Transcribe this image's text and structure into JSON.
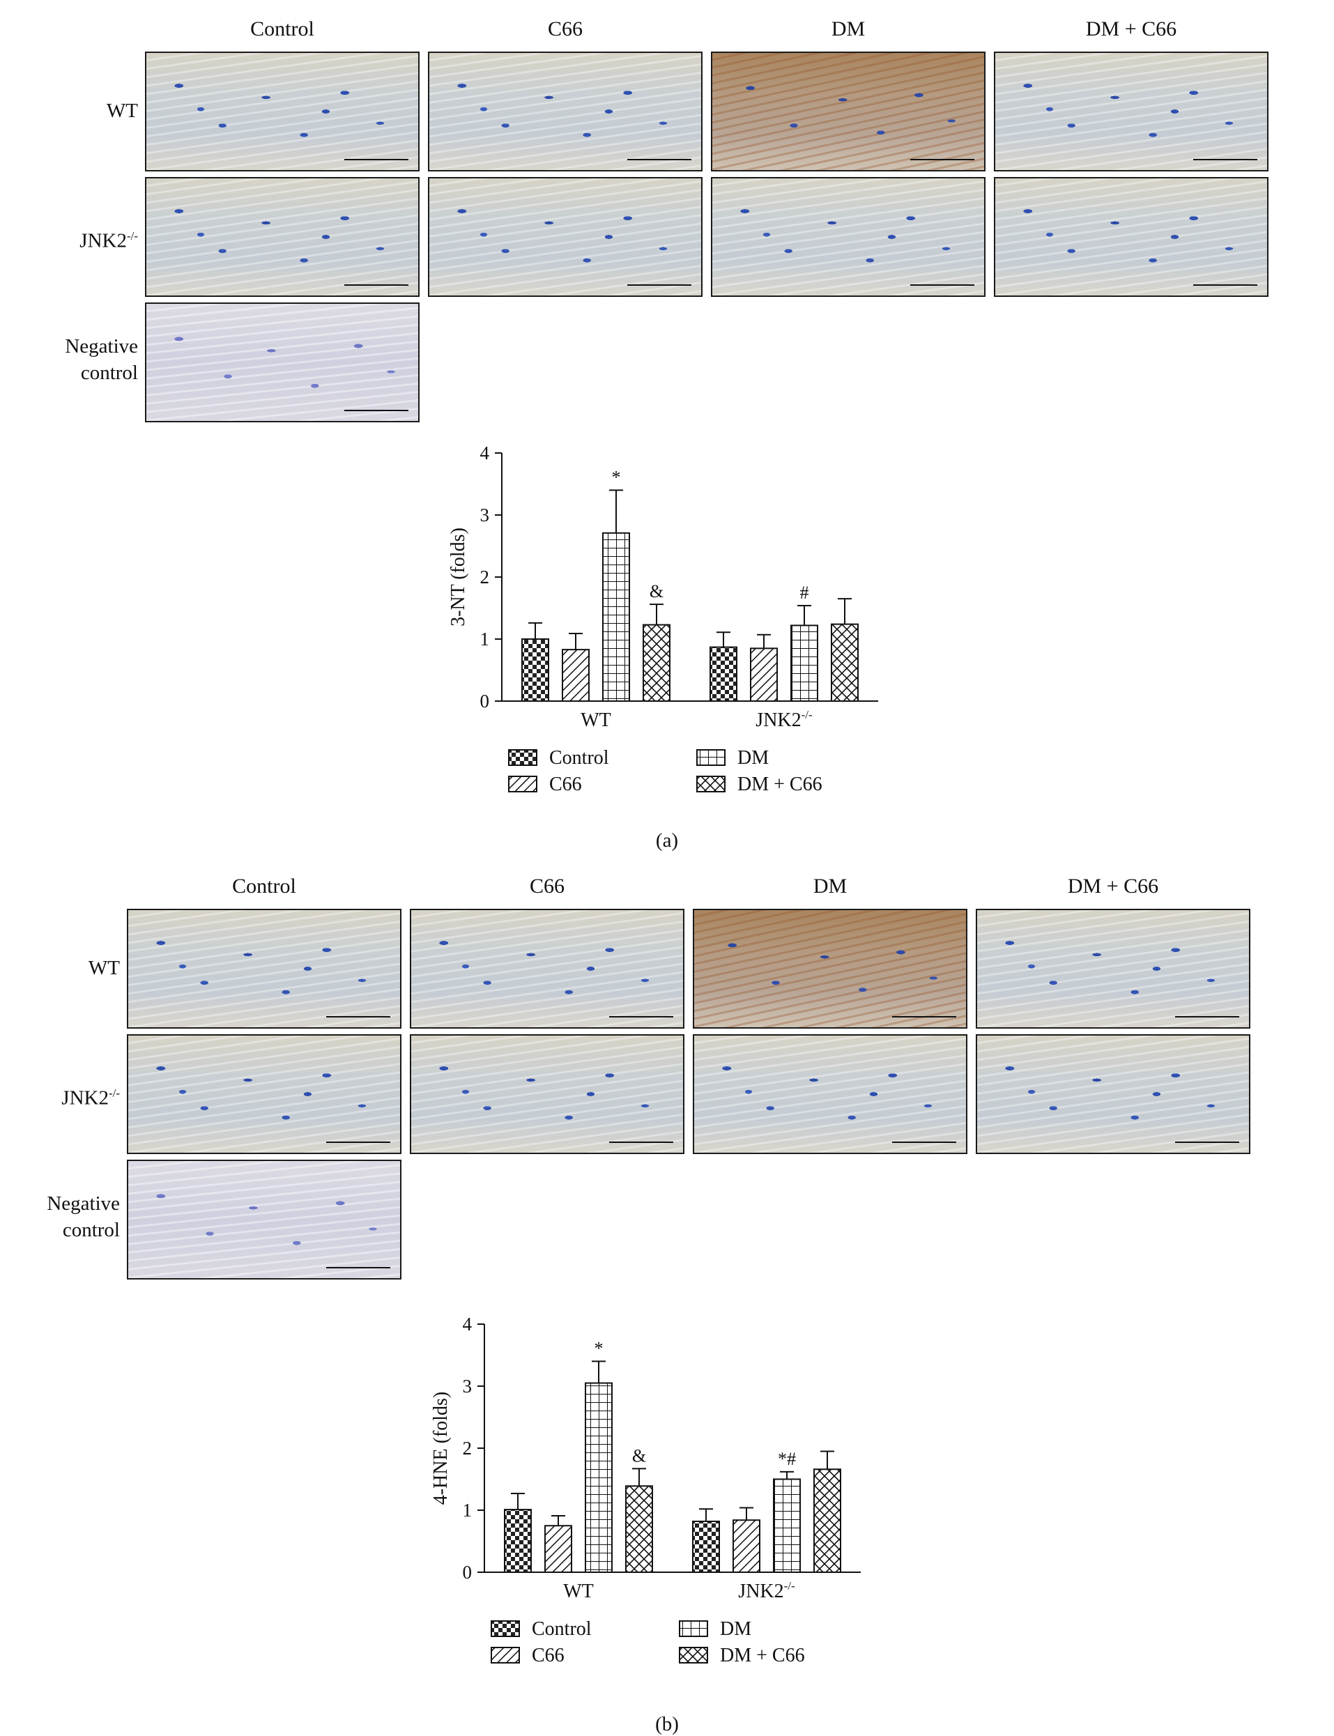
{
  "figure": {
    "col_titles": [
      "Control",
      "C66",
      "DM",
      "DM + C66"
    ],
    "row_labels": {
      "wt": "WT",
      "jnk2": "JNK2",
      "jnk2_sup": "-/-",
      "neg_line1": "Negative",
      "neg_line2": "control"
    },
    "panel_a": {
      "caption": "(a)"
    },
    "panel_b": {
      "caption": "(b)"
    }
  },
  "chart_data": [
    {
      "type": "bar",
      "categories": [
        "WT",
        "JNK2-/-"
      ],
      "category_sup": [
        "",
        "-/-"
      ],
      "category_base": [
        "WT",
        "JNK2"
      ],
      "ylabel": "3-NT (folds)",
      "ylim": [
        0,
        4
      ],
      "yticks": [
        0,
        1,
        2,
        3,
        4
      ],
      "legend_position": "bottom",
      "series": [
        {
          "name": "Control",
          "pattern": "checker",
          "values": [
            1.0,
            0.87
          ],
          "errors": [
            0.26,
            0.24
          ],
          "annotations": [
            "",
            ""
          ]
        },
        {
          "name": "C66",
          "pattern": "diagonal",
          "values": [
            0.83,
            0.85
          ],
          "errors": [
            0.26,
            0.22
          ],
          "annotations": [
            "",
            ""
          ]
        },
        {
          "name": "DM",
          "pattern": "grid",
          "values": [
            2.71,
            1.22
          ],
          "errors": [
            0.69,
            0.32
          ],
          "annotations": [
            "*",
            "#"
          ]
        },
        {
          "name": "DM + C66",
          "pattern": "crosshatch",
          "values": [
            1.23,
            1.24
          ],
          "errors": [
            0.33,
            0.41
          ],
          "annotations": [
            "&",
            ""
          ]
        }
      ]
    },
    {
      "type": "bar",
      "categories": [
        "WT",
        "JNK2-/-"
      ],
      "category_sup": [
        "",
        "-/-"
      ],
      "category_base": [
        "WT",
        "JNK2"
      ],
      "ylabel": "4-HNE (folds)",
      "ylim": [
        0,
        4
      ],
      "yticks": [
        0,
        1,
        2,
        3,
        4
      ],
      "legend_position": "bottom",
      "series": [
        {
          "name": "Control",
          "pattern": "checker",
          "values": [
            1.01,
            0.82
          ],
          "errors": [
            0.26,
            0.2
          ],
          "annotations": [
            "",
            ""
          ]
        },
        {
          "name": "C66",
          "pattern": "diagonal",
          "values": [
            0.75,
            0.84
          ],
          "errors": [
            0.16,
            0.2
          ],
          "annotations": [
            "",
            ""
          ]
        },
        {
          "name": "DM",
          "pattern": "grid",
          "values": [
            3.05,
            1.5
          ],
          "errors": [
            0.35,
            0.12
          ],
          "annotations": [
            "*",
            "*#"
          ]
        },
        {
          "name": "DM + C66",
          "pattern": "crosshatch",
          "values": [
            1.39,
            1.66
          ],
          "errors": [
            0.28,
            0.29
          ],
          "annotations": [
            "&",
            ""
          ]
        }
      ]
    }
  ]
}
